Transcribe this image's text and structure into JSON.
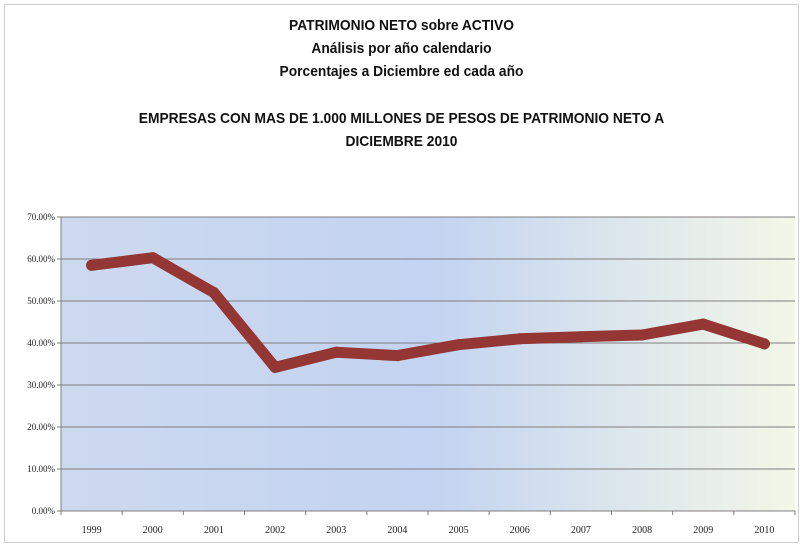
{
  "chart_data": {
    "type": "line",
    "title_lines": [
      "PATRIMONIO NETO  sobre ACTIVO",
      "Análisis por año calendario",
      "Porcentajes a Diciembre ed cada año"
    ],
    "subtitle_lines": [
      "EMPRESAS CON MAS DE 1.000 MILLONES DE PESOS DE PATRIMONIO NETO A",
      "DICIEMBRE 2010"
    ],
    "categories": [
      "1999",
      "2000",
      "2001",
      "2002",
      "2003",
      "2004",
      "2005",
      "2006",
      "2007",
      "2008",
      "2009",
      "2010"
    ],
    "series": [
      {
        "values": [
          58.5,
          60.3,
          52.0,
          34.2,
          37.8,
          37.0,
          39.6,
          41.0,
          41.5,
          41.9,
          44.5,
          39.8
        ],
        "color": "#943634"
      }
    ],
    "ylim": [
      0,
      70
    ],
    "yticks": [
      0,
      10,
      20,
      30,
      40,
      50,
      60,
      70
    ],
    "ytick_labels": [
      "0.00%",
      "10.00%",
      "20.00%",
      "30.00%",
      "40.00%",
      "50.00%",
      "60.00%",
      "70.00%"
    ],
    "grid": true,
    "xlabel": "",
    "ylabel": "",
    "plot_background": [
      "#cdd9ef",
      "#c3d3f1",
      "#f3f7e8"
    ]
  }
}
